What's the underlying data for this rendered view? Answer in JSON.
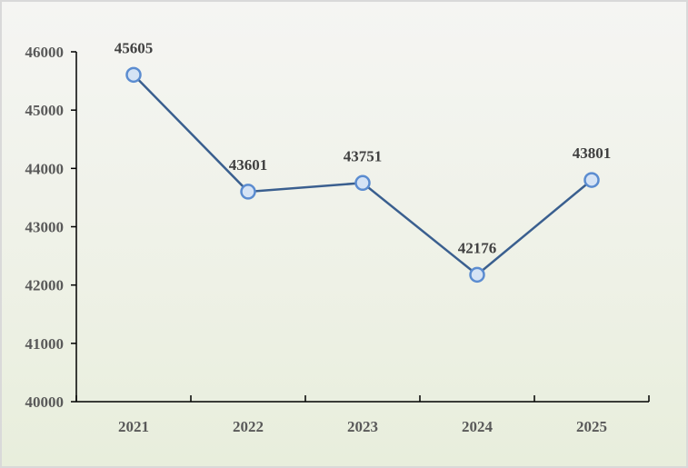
{
  "chart_data": {
    "type": "line",
    "categories": [
      "2021",
      "2022",
      "2023",
      "2024",
      "2025"
    ],
    "values": [
      45605,
      43601,
      43751,
      42176,
      43801
    ],
    "data_labels": [
      "45605",
      "43601",
      "43751",
      "42176",
      "43801"
    ],
    "y_ticks": [
      "40000",
      "41000",
      "42000",
      "43000",
      "44000",
      "45000",
      "46000"
    ],
    "ylim": [
      40000,
      46000
    ],
    "title": "",
    "xlabel": "",
    "ylabel": "",
    "grid": false,
    "legend": "none",
    "colors": {
      "line": "#3a5f8f",
      "marker_fill": "#d5e3f5",
      "marker_stroke": "#5b8cd0",
      "axis": "#000000"
    }
  }
}
